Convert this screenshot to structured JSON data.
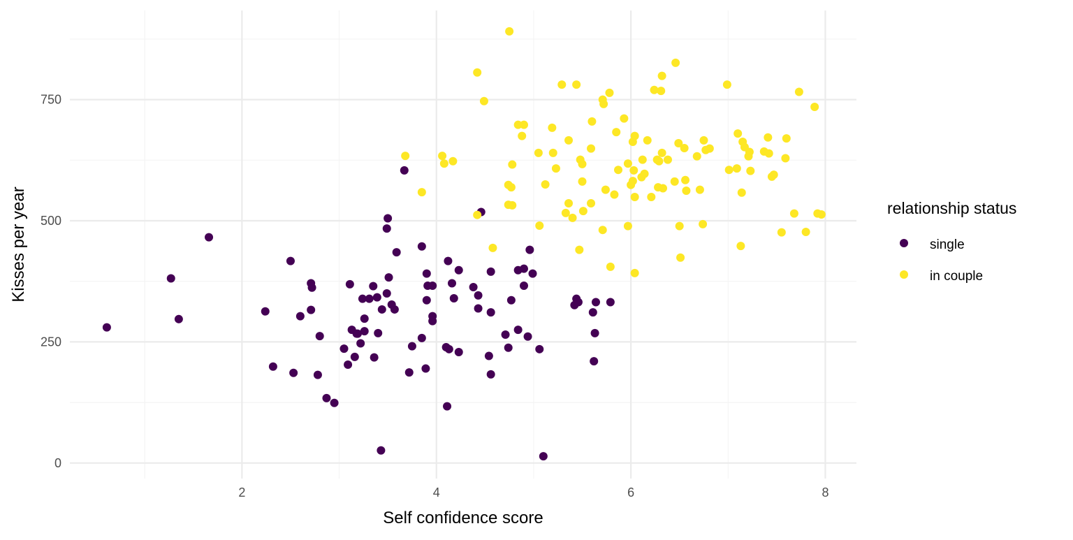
{
  "chart_data": {
    "type": "scatter",
    "title": "",
    "xlabel": "Self confidence score",
    "ylabel": "Kisses per year",
    "xlim": [
      0.23,
      8.32
    ],
    "ylim": [
      -32,
      934
    ],
    "x_ticks": [
      2,
      4,
      6,
      8
    ],
    "x_tick_labels": [
      "2",
      "4",
      "6",
      "8"
    ],
    "x_minor": [
      1,
      3,
      5,
      7
    ],
    "y_ticks": [
      0,
      250,
      500,
      750
    ],
    "y_tick_labels": [
      "0",
      "250",
      "500",
      "750"
    ],
    "y_minor": [
      125,
      375,
      625,
      875
    ],
    "grid": true,
    "legend": {
      "title": "relationship status",
      "placement": "right",
      "entries": [
        "single",
        "in couple"
      ]
    },
    "colors": {
      "single": "#440154",
      "in couple": "#FDE725",
      "grid_major": "#EBEBEB",
      "grid_minor": "#F4F4F4"
    },
    "series": [
      {
        "name": "single",
        "points": [
          [
            0.61,
            280
          ],
          [
            1.27,
            381
          ],
          [
            1.35,
            297
          ],
          [
            1.66,
            466
          ],
          [
            2.24,
            313
          ],
          [
            2.32,
            199
          ],
          [
            2.5,
            417
          ],
          [
            2.53,
            186
          ],
          [
            2.6,
            303
          ],
          [
            2.71,
            371
          ],
          [
            2.72,
            362
          ],
          [
            2.71,
            316
          ],
          [
            2.78,
            182
          ],
          [
            2.8,
            262
          ],
          [
            2.87,
            134
          ],
          [
            2.95,
            124
          ],
          [
            3.05,
            236
          ],
          [
            3.09,
            203
          ],
          [
            3.11,
            369
          ],
          [
            3.13,
            275
          ],
          [
            3.16,
            219
          ],
          [
            3.18,
            267
          ],
          [
            3.19,
            267
          ],
          [
            3.22,
            247
          ],
          [
            3.24,
            339
          ],
          [
            3.26,
            298
          ],
          [
            3.26,
            272
          ],
          [
            3.31,
            339
          ],
          [
            3.35,
            365
          ],
          [
            3.36,
            218
          ],
          [
            3.39,
            342
          ],
          [
            3.4,
            268
          ],
          [
            3.43,
            26
          ],
          [
            3.44,
            317
          ],
          [
            3.49,
            350
          ],
          [
            3.49,
            484
          ],
          [
            3.5,
            505
          ],
          [
            3.51,
            383
          ],
          [
            3.54,
            327
          ],
          [
            3.57,
            317
          ],
          [
            3.59,
            435
          ],
          [
            3.67,
            604
          ],
          [
            3.72,
            187
          ],
          [
            3.75,
            241
          ],
          [
            3.85,
            258
          ],
          [
            3.85,
            447
          ],
          [
            3.9,
            391
          ],
          [
            3.89,
            195
          ],
          [
            3.9,
            336
          ],
          [
            3.91,
            366
          ],
          [
            3.96,
            366
          ],
          [
            3.96,
            293
          ],
          [
            3.96,
            303
          ],
          [
            4.1,
            239
          ],
          [
            4.11,
            117
          ],
          [
            4.12,
            417
          ],
          [
            4.13,
            235
          ],
          [
            4.16,
            371
          ],
          [
            4.18,
            340
          ],
          [
            4.23,
            398
          ],
          [
            4.23,
            229
          ],
          [
            4.38,
            363
          ],
          [
            4.43,
            346
          ],
          [
            4.43,
            319
          ],
          [
            4.46,
            518
          ],
          [
            4.54,
            221
          ],
          [
            4.56,
            183
          ],
          [
            4.56,
            311
          ],
          [
            4.56,
            395
          ],
          [
            4.71,
            265
          ],
          [
            4.74,
            238
          ],
          [
            4.77,
            336
          ],
          [
            4.84,
            275
          ],
          [
            4.84,
            398
          ],
          [
            4.9,
            401
          ],
          [
            4.9,
            366
          ],
          [
            4.94,
            261
          ],
          [
            4.96,
            440
          ],
          [
            4.99,
            391
          ],
          [
            5.06,
            235
          ],
          [
            5.1,
            14
          ],
          [
            5.44,
            339
          ],
          [
            5.46,
            332
          ],
          [
            5.42,
            326
          ],
          [
            5.61,
            311
          ],
          [
            5.62,
            210
          ],
          [
            5.63,
            268
          ],
          [
            5.64,
            332
          ],
          [
            5.79,
            332
          ]
        ]
      },
      {
        "name": "in couple",
        "points": [
          [
            4.75,
            891
          ],
          [
            4.42,
            806
          ],
          [
            4.49,
            747
          ],
          [
            3.68,
            634
          ],
          [
            3.85,
            559
          ],
          [
            4.06,
            634
          ],
          [
            4.08,
            618
          ],
          [
            4.17,
            623
          ],
          [
            4.42,
            512
          ],
          [
            4.58,
            444
          ],
          [
            4.74,
            574
          ],
          [
            4.77,
            569
          ],
          [
            4.78,
            616
          ],
          [
            4.78,
            532
          ],
          [
            4.74,
            533
          ],
          [
            4.84,
            698
          ],
          [
            4.88,
            675
          ],
          [
            4.9,
            698
          ],
          [
            5.05,
            640
          ],
          [
            5.06,
            490
          ],
          [
            5.12,
            575
          ],
          [
            5.19,
            692
          ],
          [
            5.2,
            640
          ],
          [
            5.23,
            608
          ],
          [
            5.29,
            781
          ],
          [
            5.33,
            516
          ],
          [
            5.36,
            536
          ],
          [
            5.36,
            666
          ],
          [
            5.4,
            506
          ],
          [
            5.44,
            781
          ],
          [
            5.47,
            440
          ],
          [
            5.48,
            626
          ],
          [
            5.5,
            617
          ],
          [
            5.5,
            581
          ],
          [
            5.51,
            520
          ],
          [
            5.59,
            536
          ],
          [
            5.59,
            649
          ],
          [
            5.6,
            705
          ],
          [
            5.71,
            750
          ],
          [
            5.72,
            741
          ],
          [
            5.71,
            481
          ],
          [
            5.74,
            564
          ],
          [
            5.78,
            764
          ],
          [
            5.79,
            405
          ],
          [
            5.83,
            554
          ],
          [
            5.85,
            683
          ],
          [
            5.87,
            605
          ],
          [
            5.93,
            711
          ],
          [
            5.97,
            618
          ],
          [
            5.97,
            489
          ],
          [
            6.0,
            574
          ],
          [
            6.02,
            582
          ],
          [
            6.02,
            663
          ],
          [
            6.03,
            604
          ],
          [
            6.04,
            675
          ],
          [
            6.04,
            549
          ],
          [
            6.04,
            392
          ],
          [
            6.11,
            590
          ],
          [
            6.12,
            626
          ],
          [
            6.14,
            597
          ],
          [
            6.17,
            666
          ],
          [
            6.21,
            549
          ],
          [
            6.24,
            770
          ],
          [
            6.27,
            626
          ],
          [
            6.28,
            569
          ],
          [
            6.29,
            623
          ],
          [
            6.31,
            768
          ],
          [
            6.32,
            799
          ],
          [
            6.32,
            640
          ],
          [
            6.33,
            567
          ],
          [
            6.38,
            626
          ],
          [
            6.45,
            581
          ],
          [
            6.46,
            826
          ],
          [
            6.49,
            660
          ],
          [
            6.5,
            489
          ],
          [
            6.51,
            424
          ],
          [
            6.55,
            650
          ],
          [
            6.56,
            584
          ],
          [
            6.57,
            562
          ],
          [
            6.68,
            633
          ],
          [
            6.71,
            564
          ],
          [
            6.74,
            493
          ],
          [
            6.75,
            666
          ],
          [
            6.77,
            646
          ],
          [
            6.81,
            649
          ],
          [
            6.99,
            781
          ],
          [
            7.01,
            605
          ],
          [
            7.09,
            608
          ],
          [
            7.1,
            680
          ],
          [
            7.13,
            448
          ],
          [
            7.14,
            558
          ],
          [
            7.15,
            663
          ],
          [
            7.17,
            652
          ],
          [
            7.22,
            642
          ],
          [
            7.21,
            633
          ],
          [
            7.23,
            603
          ],
          [
            7.37,
            643
          ],
          [
            7.41,
            672
          ],
          [
            7.42,
            639
          ],
          [
            7.45,
            591
          ],
          [
            7.47,
            595
          ],
          [
            7.55,
            476
          ],
          [
            7.59,
            629
          ],
          [
            7.6,
            670
          ],
          [
            7.68,
            515
          ],
          [
            7.73,
            766
          ],
          [
            7.8,
            477
          ],
          [
            7.89,
            735
          ],
          [
            7.92,
            515
          ],
          [
            7.96,
            513
          ]
        ]
      }
    ]
  }
}
